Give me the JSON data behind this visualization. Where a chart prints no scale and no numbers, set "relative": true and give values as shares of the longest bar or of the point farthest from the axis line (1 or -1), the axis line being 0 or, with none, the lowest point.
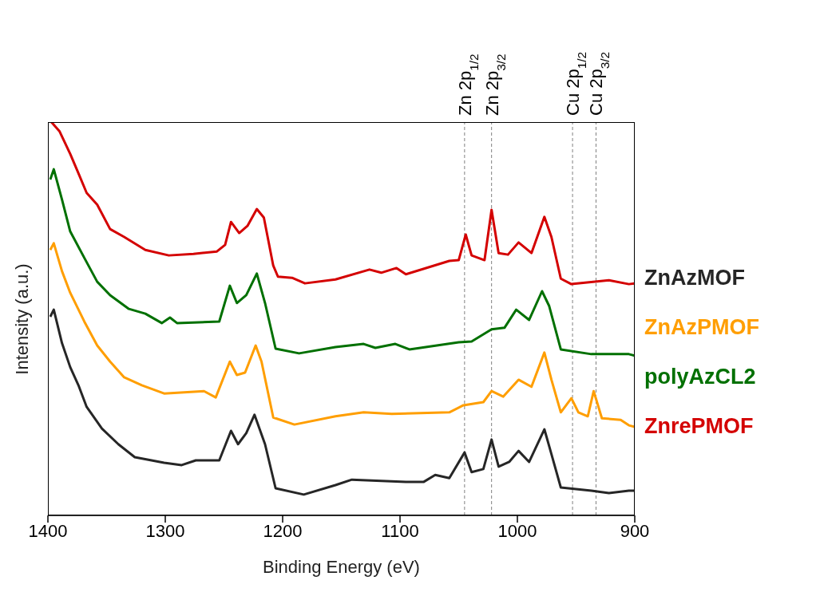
{
  "chart_data": {
    "type": "line",
    "relative": true,
    "xlabel": "Binding Energy (eV)",
    "ylabel": "Intensity (a.u.)",
    "xlim": [
      1400,
      900
    ],
    "xticks": [
      1400,
      1300,
      1200,
      1100,
      1000,
      900
    ],
    "legend": "right",
    "marker": "none",
    "line_style": "solid",
    "ref_lines": [
      {
        "axis": "x",
        "value": 1045,
        "label": "Zn 2p$_{1/2}$",
        "color": "#808080",
        "line_style": "dashed"
      },
      {
        "axis": "x",
        "value": 1022,
        "label": "Zn 2p$_{3/2}$",
        "color": "#808080",
        "line_style": "dashed"
      },
      {
        "axis": "x",
        "value": 953,
        "label": "Cu 2p$_{1/2}$",
        "color": "#808080",
        "line_style": "dashed"
      },
      {
        "axis": "x",
        "value": 933,
        "label": "Cu 2p$_{3/2}$",
        "color": "#808080",
        "line_style": "dashed"
      }
    ],
    "series": [
      {
        "name": "ZnAzMOF",
        "color": "#262626",
        "x": [
          1398,
          1395,
          1388,
          1381,
          1374,
          1367,
          1354,
          1340,
          1326,
          1301,
          1286,
          1274,
          1254,
          1244,
          1238,
          1231,
          1224,
          1215,
          1206,
          1182,
          1155,
          1141,
          1095,
          1080,
          1070,
          1058,
          1045,
          1039,
          1029,
          1022,
          1016,
          1007,
          999,
          990,
          977,
          971,
          963,
          937,
          922,
          905,
          900
        ],
        "values": [
          0.505,
          0.523,
          0.438,
          0.377,
          0.331,
          0.276,
          0.221,
          0.181,
          0.148,
          0.134,
          0.128,
          0.14,
          0.14,
          0.215,
          0.181,
          0.209,
          0.256,
          0.181,
          0.069,
          0.053,
          0.077,
          0.091,
          0.085,
          0.085,
          0.103,
          0.095,
          0.16,
          0.11,
          0.118,
          0.193,
          0.124,
          0.136,
          0.164,
          0.136,
          0.219,
          0.156,
          0.071,
          0.063,
          0.057,
          0.063,
          0.063
        ]
      },
      {
        "name": "ZnAzPMOF",
        "color": "#ff9e00",
        "x": [
          1398,
          1395,
          1388,
          1381,
          1369,
          1358,
          1347,
          1335,
          1320,
          1301,
          1267,
          1257,
          1245,
          1239,
          1232,
          1223,
          1218,
          1208,
          1190,
          1155,
          1131,
          1107,
          1058,
          1046,
          1029,
          1022,
          1012,
          999,
          988,
          977,
          971,
          963,
          954,
          948,
          940,
          935,
          928,
          912,
          905,
          900
        ],
        "values": [
          0.675,
          0.692,
          0.621,
          0.566,
          0.493,
          0.432,
          0.391,
          0.351,
          0.331,
          0.31,
          0.316,
          0.3,
          0.391,
          0.357,
          0.363,
          0.432,
          0.391,
          0.249,
          0.231,
          0.252,
          0.262,
          0.258,
          0.262,
          0.28,
          0.288,
          0.316,
          0.302,
          0.345,
          0.327,
          0.414,
          0.345,
          0.262,
          0.298,
          0.262,
          0.252,
          0.316,
          0.247,
          0.243,
          0.229,
          0.225
        ]
      },
      {
        "name": "polyAzCL2",
        "color": "#007000",
        "x": [
          1398,
          1395,
          1388,
          1381,
          1369,
          1358,
          1347,
          1331,
          1317,
          1303,
          1296,
          1290,
          1254,
          1245,
          1239,
          1231,
          1222,
          1215,
          1206,
          1186,
          1155,
          1131,
          1121,
          1104,
          1092,
          1050,
          1039,
          1022,
          1011,
          1001,
          990,
          979,
          973,
          963,
          937,
          905,
          900
        ],
        "values": [
          0.854,
          0.88,
          0.803,
          0.722,
          0.655,
          0.594,
          0.56,
          0.525,
          0.513,
          0.489,
          0.503,
          0.489,
          0.493,
          0.584,
          0.54,
          0.56,
          0.615,
          0.54,
          0.424,
          0.412,
          0.428,
          0.436,
          0.426,
          0.436,
          0.422,
          0.44,
          0.442,
          0.473,
          0.477,
          0.523,
          0.497,
          0.57,
          0.533,
          0.422,
          0.41,
          0.41,
          0.406
        ]
      },
      {
        "name": "ZnrePMOF",
        "color": "#d40000",
        "x": [
          1397,
          1390,
          1381,
          1374,
          1367,
          1358,
          1347,
          1335,
          1317,
          1297,
          1276,
          1256,
          1249,
          1244,
          1237,
          1230,
          1222,
          1216,
          1208,
          1204,
          1192,
          1181,
          1155,
          1126,
          1116,
          1103,
          1095,
          1058,
          1050,
          1044,
          1039,
          1028,
          1022,
          1016,
          1008,
          999,
          988,
          977,
          971,
          963,
          954,
          922,
          905,
          900
        ],
        "values": [
          1,
          0.976,
          0.919,
          0.87,
          0.82,
          0.79,
          0.728,
          0.708,
          0.675,
          0.661,
          0.665,
          0.671,
          0.688,
          0.746,
          0.718,
          0.736,
          0.779,
          0.757,
          0.635,
          0.607,
          0.604,
          0.59,
          0.6,
          0.625,
          0.617,
          0.629,
          0.613,
          0.647,
          0.649,
          0.714,
          0.661,
          0.649,
          0.777,
          0.667,
          0.663,
          0.694,
          0.667,
          0.759,
          0.708,
          0.602,
          0.588,
          0.598,
          0.588,
          0.59
        ]
      }
    ]
  }
}
